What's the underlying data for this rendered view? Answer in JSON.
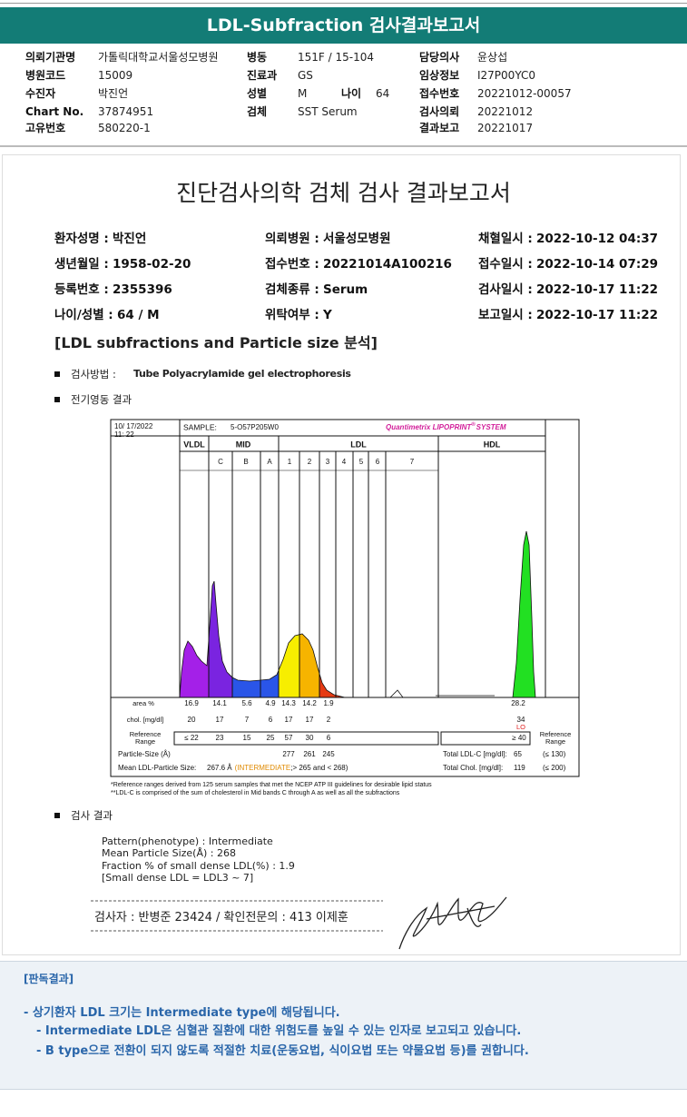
{
  "header": {
    "title": "LDL-Subfraction 검사결과보고서"
  },
  "request_info": [
    {
      "label": "의뢰기관명",
      "value": "가톨릭대학교서울성모병원"
    },
    {
      "label": "병원코드",
      "value": "15009"
    },
    {
      "label": "수진자",
      "value": "박진언"
    },
    {
      "label": "Chart No.",
      "value": "37874951"
    },
    {
      "label": "고유번호",
      "value": "580220-1"
    },
    {
      "label": "병동",
      "value": "151F / 15-104"
    },
    {
      "label": "진료과",
      "value": "GS"
    },
    {
      "label": "성별",
      "value": "M"
    },
    {
      "label": "검체",
      "value": "SST Serum"
    },
    {
      "label": "나이",
      "value": "64"
    },
    {
      "label": "담당의사",
      "value": "윤상섭"
    },
    {
      "label": "임상정보",
      "value": "I27P00YC0"
    },
    {
      "label": "접수번호",
      "value": "20221012-00057"
    },
    {
      "label": "검사의뢰",
      "value": "20221012"
    },
    {
      "label": "결과보고",
      "value": "20221017"
    }
  ],
  "report": {
    "title": "진단검사의학 검체 검사 결과보고서",
    "patient": [
      {
        "label": "환자성명 :",
        "value": "박진언"
      },
      {
        "label": "의뢰병원 :",
        "value": "서울성모병원"
      },
      {
        "label": "채혈일시 :",
        "value": "2022-10-12 04:37"
      },
      {
        "label": "생년월일 :",
        "value": "1958-02-20"
      },
      {
        "label": "접수번호 :",
        "value": "20221014A100216"
      },
      {
        "label": "접수일시 :",
        "value": "2022-10-14 07:29"
      },
      {
        "label": "등록번호 :",
        "value": "2355396"
      },
      {
        "label": "검체종류 :",
        "value": "Serum"
      },
      {
        "label": "검사일시 :",
        "value": "2022-10-17 11:22"
      },
      {
        "label": "나이/성별 :",
        "value": "64 / M"
      },
      {
        "label": "위탁여부 :",
        "value": "Y"
      },
      {
        "label": "보고일시 :",
        "value": "2022-10-17 11:22"
      }
    ],
    "section_title": "[LDL subfractions and Particle size 분석]",
    "method_label": "검사방법 :",
    "method": "Tube Polyacrylamide gel electrophoresis",
    "electro_label": "전기영동 결과",
    "result_label": "검사 결과",
    "result_lines": [
      "Pattern(phenotype) : Intermediate",
      "Mean Particle Size(Å) : 268",
      "Fraction % of small dense LDL(%) : 1.9",
      "[Small dense LDL = LDL3 ~ 7]"
    ],
    "signature": "검사자 : 반병준  23424  /  확인전문의 : 413  이제훈"
  },
  "chart": {
    "date": "10/ 17/2022",
    "time": "11: 22",
    "sample_label": "SAMPLE:",
    "sample_id": "5-O57P205W0",
    "brand": "Quantimetrix LIPOPRINT",
    "brand_mark": "®",
    "brand_suffix": "SYSTEM",
    "groups": [
      "VLDL",
      "MID",
      "LDL",
      "HDL"
    ],
    "bands": [
      "C",
      "B",
      "A",
      "1",
      "2",
      "3",
      "4",
      "5",
      "6",
      "7"
    ],
    "area_label": "area %",
    "area": [
      16.9,
      14.1,
      5.6,
      4.9,
      14.3,
      14.2,
      1.9
    ],
    "area_hdl": 28.2,
    "chol_label": "chol. [mg/dl]",
    "chol": [
      20,
      17,
      7,
      6,
      17,
      17,
      2
    ],
    "chol_hdl": 34,
    "chol_flag": "LO",
    "ref_label": [
      "Reference",
      "Range"
    ],
    "ref": [
      "≤ 22",
      23,
      15,
      25,
      57,
      30,
      6
    ],
    "ref_hdl": "≥ 40",
    "ref_label_right": [
      "Reference",
      "Range"
    ],
    "particle_label": "Particle-Size (Å)",
    "particle": [
      277,
      261,
      245
    ],
    "total_ldl_label": "Total LDL-C [mg/dl]:",
    "total_ldl": 65,
    "total_ldl_ref": "(≤ 130)",
    "mean_label": "Mean LDL-Particle Size:",
    "mean_value": "267.6 Å",
    "mean_class": "(INTERMEDIATE",
    "mean_range": ";> 265 and < 268)",
    "total_chol_label": "Total Chol. [mg/dl]:",
    "total_chol": 119,
    "total_chol_ref": "(≤ 200)",
    "footnotes": [
      "*Reference ranges derived from 125 serum samples that met the NCEP ATP III guidelines for desirable lipid status",
      "**LDL-C is comprised of the sum of cholesterol in Mid bands C through A as well as all the subfractions"
    ]
  },
  "interpretation": {
    "title": "[판독결과]",
    "lines": [
      "- 상기환자 LDL 크기는 Intermediate type에 해당됩니다.",
      "- Intermediate LDL은 심혈관 질환에 대한 위험도를 높일 수 있는 인자로 보고되고 있습니다.",
      "- B type으로 전환이 되지 않도록 적절한 치료(운동요법, 식이요법 또는 약물요법 등)를 권합니다."
    ]
  }
}
